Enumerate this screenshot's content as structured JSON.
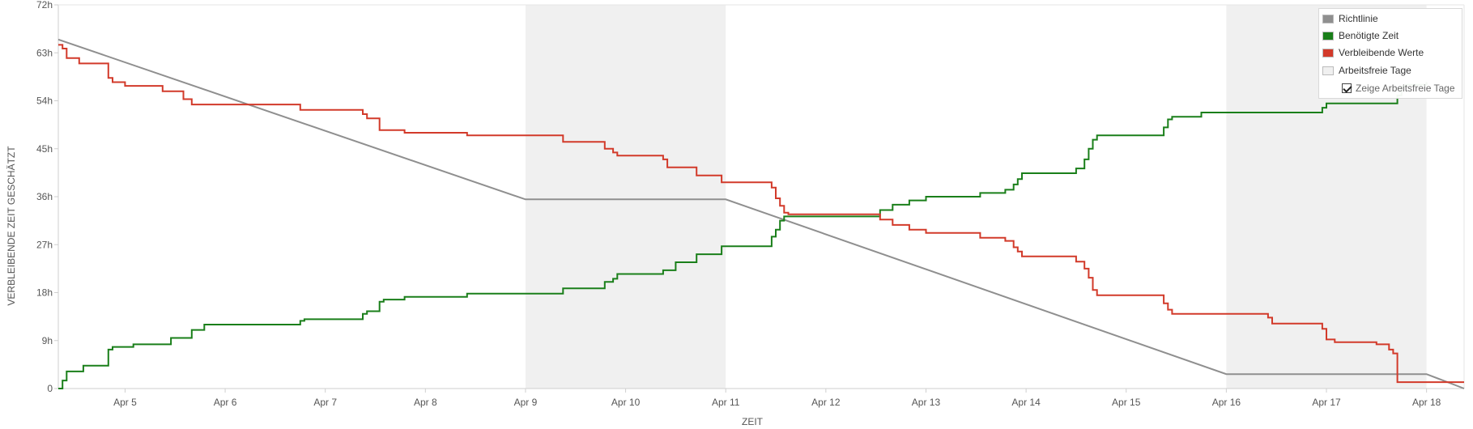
{
  "chart_data": {
    "type": "line",
    "title": "",
    "xlabel": "ZEIT",
    "ylabel": "VERBLEIBENDE ZEIT GESCHÄTZT",
    "x_domain": [
      "2024-04-04T08:00",
      "2024-04-18T09:00"
    ],
    "y_domain": [
      0,
      72
    ],
    "y_ticks": [
      0,
      9,
      18,
      27,
      36,
      45,
      54,
      63,
      72
    ],
    "y_tick_labels": [
      "0",
      "9h",
      "18h",
      "27h",
      "36h",
      "45h",
      "54h",
      "63h",
      "72h"
    ],
    "x_ticks": [
      "2024-04-05",
      "2024-04-06",
      "2024-04-07",
      "2024-04-08",
      "2024-04-09",
      "2024-04-10",
      "2024-04-11",
      "2024-04-12",
      "2024-04-13",
      "2024-04-14",
      "2024-04-15",
      "2024-04-16",
      "2024-04-17",
      "2024-04-18"
    ],
    "x_tick_labels": [
      "Apr 5",
      "Apr 6",
      "Apr 7",
      "Apr 8",
      "Apr 9",
      "Apr 10",
      "Apr 11",
      "Apr 12",
      "Apr 13",
      "Apr 14",
      "Apr 15",
      "Apr 16",
      "Apr 17",
      "Apr 18"
    ],
    "non_working_days": [
      {
        "start": "2024-04-09",
        "end": "2024-04-11"
      },
      {
        "start": "2024-04-16",
        "end": "2024-04-18"
      }
    ],
    "series": [
      {
        "name": "Richtlinie",
        "color": "#8f8f8f",
        "step": false,
        "points": [
          [
            "2024-04-04T08:00",
            65.5
          ],
          [
            "2024-04-09T00:00",
            35.5
          ],
          [
            "2024-04-11T00:00",
            35.5
          ],
          [
            "2024-04-16T00:00",
            2.7
          ],
          [
            "2024-04-18T00:00",
            2.7
          ],
          [
            "2024-04-18T09:00",
            0
          ]
        ]
      },
      {
        "name": "Benötigte Zeit",
        "color": "#1a7f1a",
        "step": true,
        "points": [
          [
            "2024-04-04T08:00",
            0
          ],
          [
            "2024-04-04T09:00",
            1.5
          ],
          [
            "2024-04-04T10:00",
            3.2
          ],
          [
            "2024-04-04T14:00",
            4.3
          ],
          [
            "2024-04-04T20:00",
            7.3
          ],
          [
            "2024-04-04T21:00",
            7.8
          ],
          [
            "2024-04-05T02:00",
            8.3
          ],
          [
            "2024-04-05T11:00",
            9.5
          ],
          [
            "2024-04-05T16:00",
            11.0
          ],
          [
            "2024-04-05T19:00",
            12.0
          ],
          [
            "2024-04-06T18:00",
            12.7
          ],
          [
            "2024-04-06T19:00",
            13.0
          ],
          [
            "2024-04-07T09:00",
            14.0
          ],
          [
            "2024-04-07T10:00",
            14.5
          ],
          [
            "2024-04-07T13:00",
            16.3
          ],
          [
            "2024-04-07T14:00",
            16.7
          ],
          [
            "2024-04-07T19:00",
            17.2
          ],
          [
            "2024-04-08T10:00",
            17.8
          ],
          [
            "2024-04-09T09:00",
            18.8
          ],
          [
            "2024-04-09T19:00",
            20.0
          ],
          [
            "2024-04-09T21:00",
            20.6
          ],
          [
            "2024-04-09T22:00",
            21.5
          ],
          [
            "2024-04-10T09:00",
            22.2
          ],
          [
            "2024-04-10T12:00",
            23.7
          ],
          [
            "2024-04-10T17:00",
            25.2
          ],
          [
            "2024-04-10T23:00",
            26.7
          ],
          [
            "2024-04-11T11:00",
            28.5
          ],
          [
            "2024-04-11T12:00",
            29.8
          ],
          [
            "2024-04-11T13:00",
            31.5
          ],
          [
            "2024-04-11T14:00",
            32.3
          ],
          [
            "2024-04-12T13:00",
            33.5
          ],
          [
            "2024-04-12T16:00",
            34.5
          ],
          [
            "2024-04-12T20:00",
            35.3
          ],
          [
            "2024-04-13T00:00",
            36.0
          ],
          [
            "2024-04-13T13:00",
            36.7
          ],
          [
            "2024-04-13T19:00",
            37.3
          ],
          [
            "2024-04-13T21:00",
            38.3
          ],
          [
            "2024-04-13T22:00",
            39.3
          ],
          [
            "2024-04-13T23:00",
            40.4
          ],
          [
            "2024-04-14T12:00",
            41.3
          ],
          [
            "2024-04-14T14:00",
            43.0
          ],
          [
            "2024-04-14T15:00",
            45.0
          ],
          [
            "2024-04-14T16:00",
            46.7
          ],
          [
            "2024-04-14T17:00",
            47.5
          ],
          [
            "2024-04-15T09:00",
            49.0
          ],
          [
            "2024-04-15T10:00",
            50.5
          ],
          [
            "2024-04-15T11:00",
            51.0
          ],
          [
            "2024-04-15T18:00",
            51.8
          ],
          [
            "2024-04-16T23:00",
            52.7
          ],
          [
            "2024-04-17T00:00",
            53.5
          ],
          [
            "2024-04-17T17:00",
            55.0
          ],
          [
            "2024-04-17T18:00",
            56.7
          ],
          [
            "2024-04-17T19:00",
            57.0
          ],
          [
            "2024-04-18T00:00",
            57.5
          ]
        ]
      },
      {
        "name": "Verbleibende Werte",
        "color": "#d23a2a",
        "step": true,
        "points": [
          [
            "2024-04-04T08:00",
            64.5
          ],
          [
            "2024-04-04T09:00",
            63.8
          ],
          [
            "2024-04-04T10:00",
            62.0
          ],
          [
            "2024-04-04T13:00",
            61.0
          ],
          [
            "2024-04-04T20:00",
            58.3
          ],
          [
            "2024-04-04T21:00",
            57.5
          ],
          [
            "2024-04-05T00:00",
            56.8
          ],
          [
            "2024-04-05T09:00",
            55.8
          ],
          [
            "2024-04-05T14:00",
            54.3
          ],
          [
            "2024-04-05T16:00",
            53.3
          ],
          [
            "2024-04-06T18:00",
            52.3
          ],
          [
            "2024-04-07T09:00",
            51.5
          ],
          [
            "2024-04-07T10:00",
            50.7
          ],
          [
            "2024-04-07T13:00",
            48.5
          ],
          [
            "2024-04-07T19:00",
            48.0
          ],
          [
            "2024-04-08T10:00",
            47.5
          ],
          [
            "2024-04-09T09:00",
            46.3
          ],
          [
            "2024-04-09T19:00",
            45.0
          ],
          [
            "2024-04-09T21:00",
            44.3
          ],
          [
            "2024-04-09T22:00",
            43.7
          ],
          [
            "2024-04-10T09:00",
            43.0
          ],
          [
            "2024-04-10T10:00",
            41.5
          ],
          [
            "2024-04-10T17:00",
            40.0
          ],
          [
            "2024-04-10T23:00",
            38.7
          ],
          [
            "2024-04-11T11:00",
            37.7
          ],
          [
            "2024-04-11T12:00",
            35.7
          ],
          [
            "2024-04-11T13:00",
            34.3
          ],
          [
            "2024-04-11T14:00",
            33.0
          ],
          [
            "2024-04-11T15:00",
            32.7
          ],
          [
            "2024-04-12T13:00",
            31.7
          ],
          [
            "2024-04-12T16:00",
            30.7
          ],
          [
            "2024-04-12T20:00",
            29.8
          ],
          [
            "2024-04-13T00:00",
            29.2
          ],
          [
            "2024-04-13T13:00",
            28.3
          ],
          [
            "2024-04-13T19:00",
            27.7
          ],
          [
            "2024-04-13T21:00",
            26.5
          ],
          [
            "2024-04-13T22:00",
            25.7
          ],
          [
            "2024-04-13T23:00",
            24.8
          ],
          [
            "2024-04-14T12:00",
            23.8
          ],
          [
            "2024-04-14T14:00",
            22.5
          ],
          [
            "2024-04-14T15:00",
            20.8
          ],
          [
            "2024-04-14T16:00",
            18.5
          ],
          [
            "2024-04-14T17:00",
            17.5
          ],
          [
            "2024-04-15T09:00",
            16.0
          ],
          [
            "2024-04-15T10:00",
            14.8
          ],
          [
            "2024-04-15T11:00",
            14.0
          ],
          [
            "2024-04-16T10:00",
            13.3
          ],
          [
            "2024-04-16T11:00",
            12.2
          ],
          [
            "2024-04-16T23:00",
            11.2
          ],
          [
            "2024-04-17T00:00",
            9.2
          ],
          [
            "2024-04-17T02:00",
            8.7
          ],
          [
            "2024-04-17T12:00",
            8.3
          ],
          [
            "2024-04-17T15:00",
            7.3
          ],
          [
            "2024-04-17T16:00",
            6.6
          ],
          [
            "2024-04-17T17:00",
            1.2
          ],
          [
            "2024-04-18T09:00",
            1.2
          ]
        ]
      }
    ],
    "grid": false,
    "legend_position": "top-right"
  },
  "legend": {
    "items": [
      {
        "label": "Richtlinie",
        "color": "#8f8f8f"
      },
      {
        "label": "Benötigte Zeit",
        "color": "#1a7f1a"
      },
      {
        "label": "Verbleibende Werte",
        "color": "#d23a2a"
      },
      {
        "label": "Arbeitsfreie Tage",
        "color": "#f0f0f0"
      }
    ],
    "toggle_label": "Zeige Arbeitsfreie Tage",
    "toggle_checked": true
  },
  "colors": {
    "non_working_fill": "#f0f0f0",
    "axis": "#cfcfcf",
    "text": "#555555"
  }
}
